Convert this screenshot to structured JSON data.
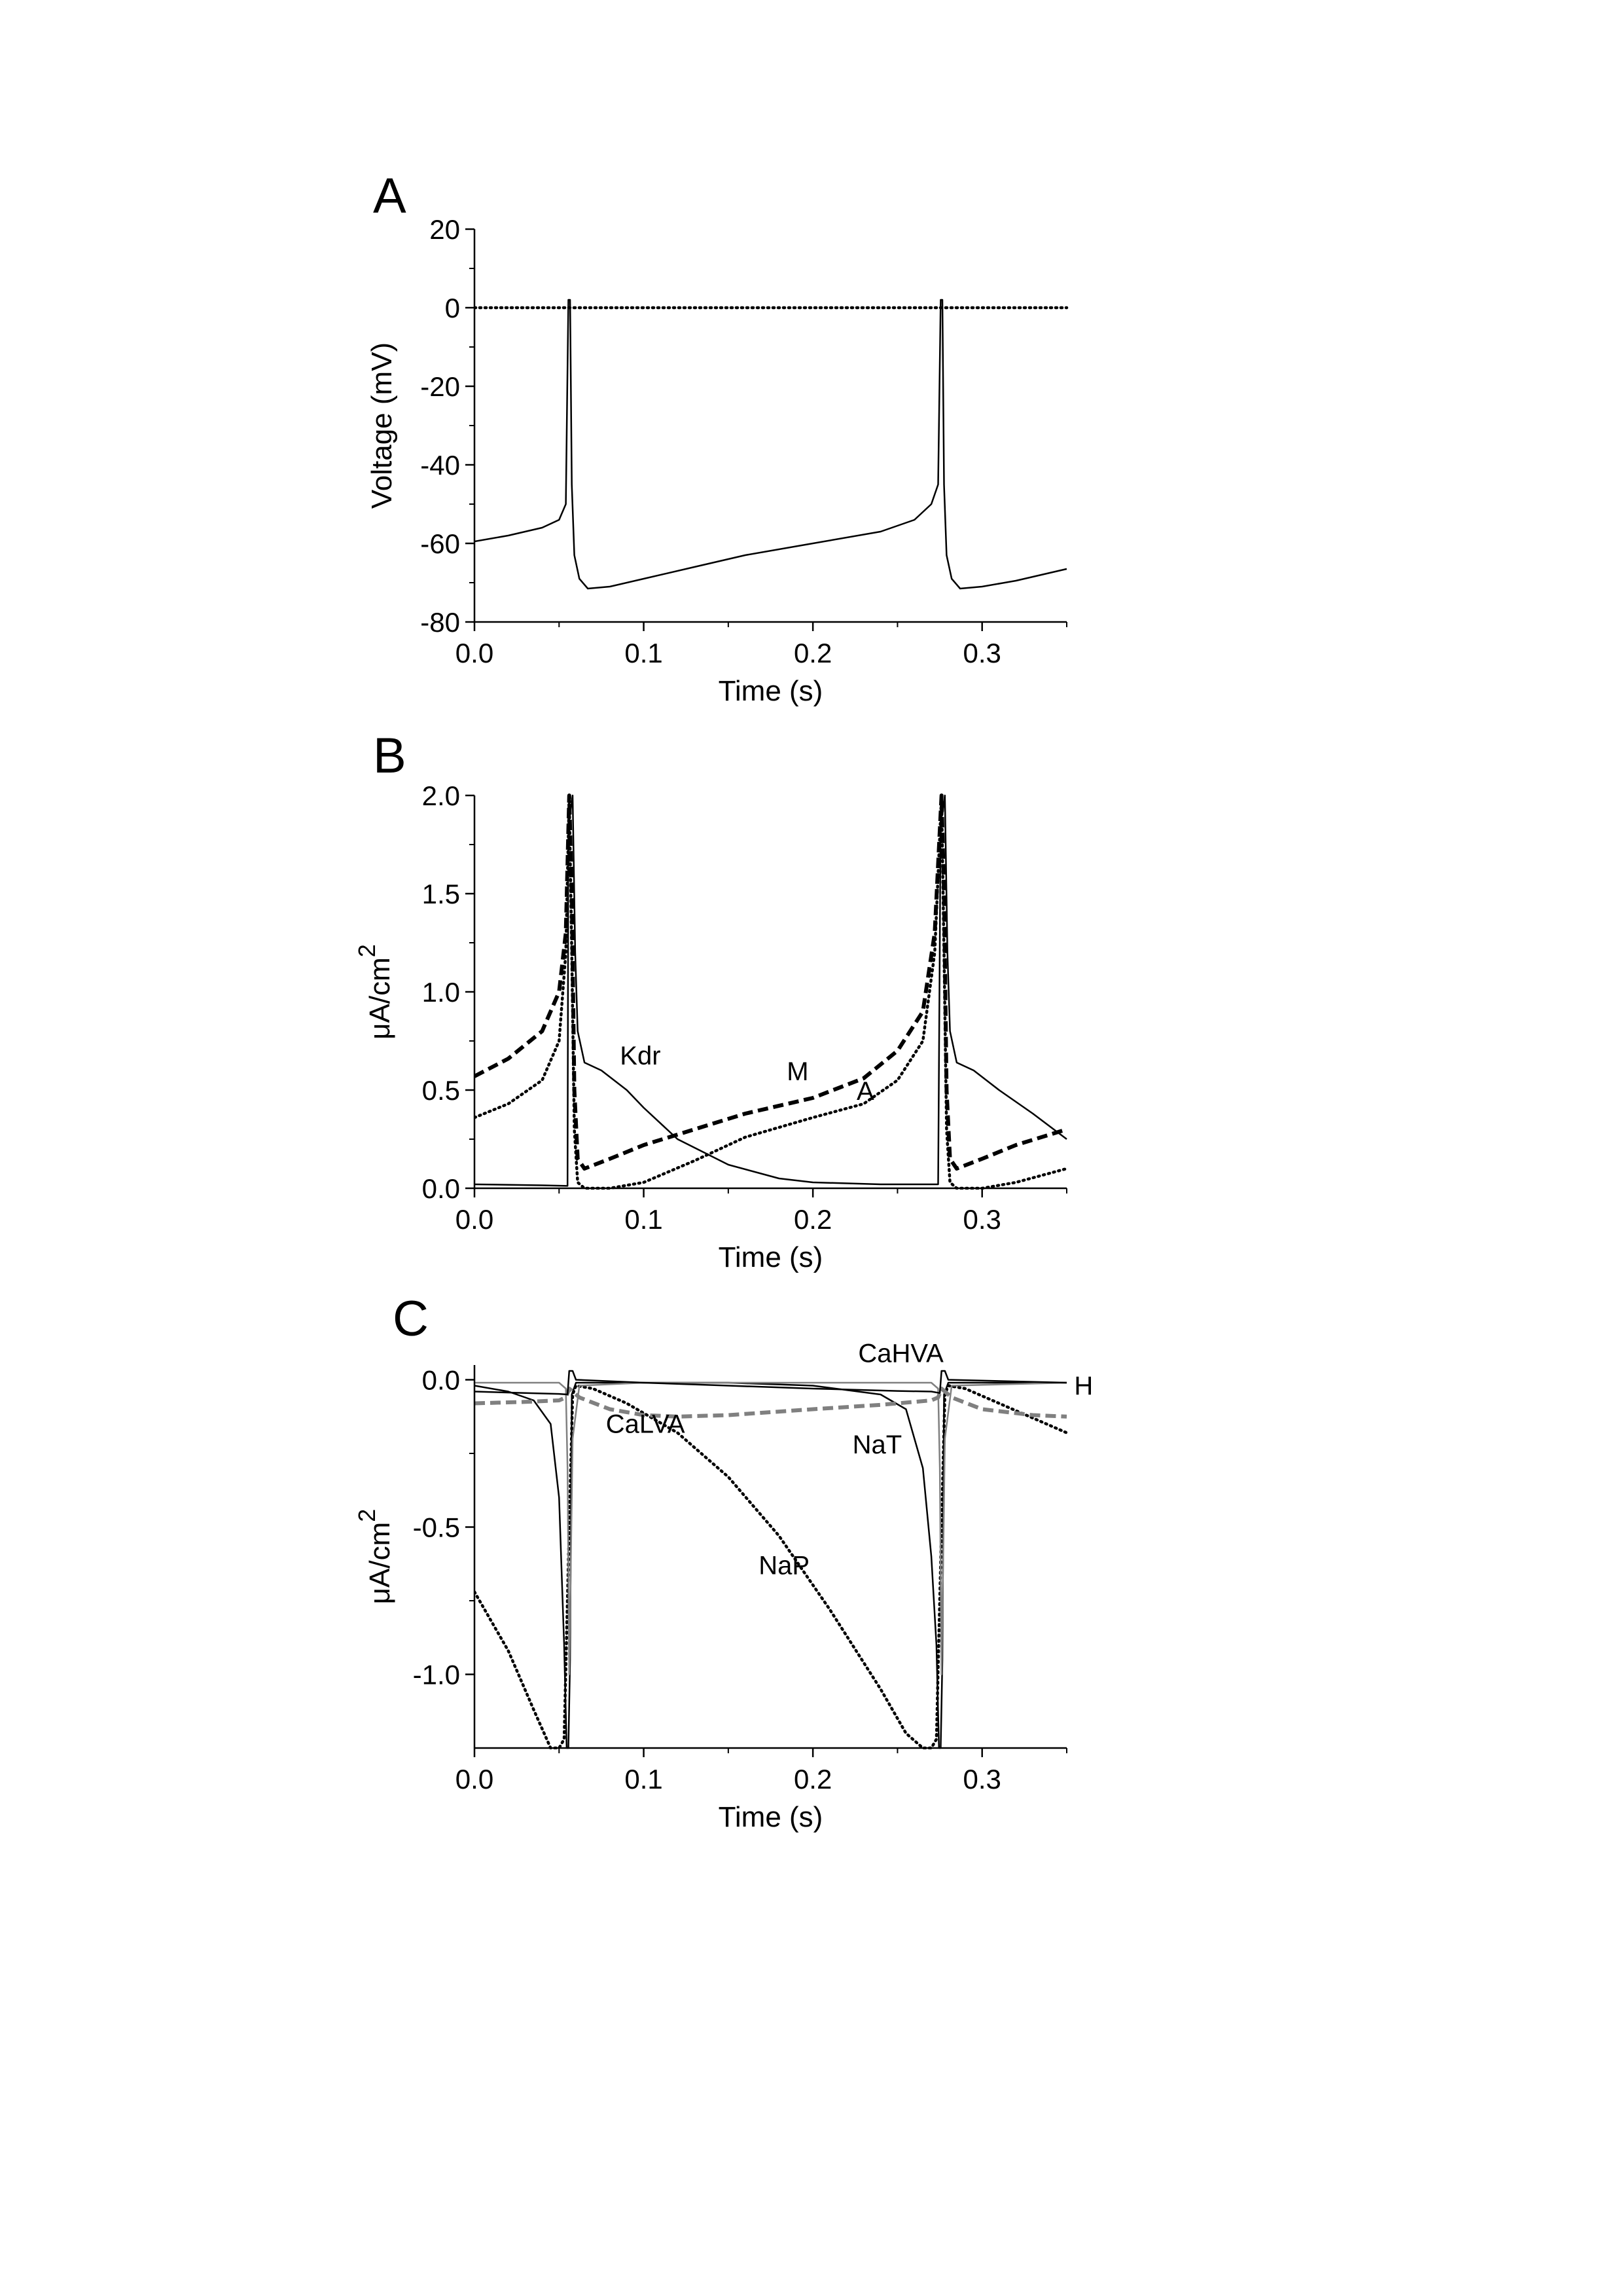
{
  "chart_data": [
    {
      "panel": "A",
      "type": "line",
      "title": "",
      "xlabel": "Time (s)",
      "ylabel": "Voltage (mV)",
      "xlim": [
        0,
        0.35
      ],
      "ylim": [
        -80,
        20
      ],
      "xticks": [
        0.0,
        0.1,
        0.2,
        0.3
      ],
      "xtick_labels": [
        "0.0",
        "0.1",
        "0.2",
        "0.3"
      ],
      "yticks": [
        20,
        0,
        -20,
        -40,
        -60,
        -80
      ],
      "ytick_labels": [
        "20",
        "0",
        "-20",
        "-40",
        "-60",
        "-80"
      ],
      "grid": false,
      "series": [
        {
          "style": "solid",
          "color": "#000000",
          "x": [
            0,
            0.02,
            0.04,
            0.05,
            0.054,
            0.0555,
            0.0565,
            0.0575,
            0.059,
            0.062,
            0.067,
            0.08,
            0.1,
            0.13,
            0.16,
            0.2,
            0.24,
            0.26,
            0.27,
            0.274,
            0.2755,
            0.2765,
            0.2775,
            0.279,
            0.282,
            0.287,
            0.3,
            0.32,
            0.35
          ],
          "y": [
            -59.5,
            -58,
            -56,
            -54,
            -50,
            2,
            2,
            -45,
            -63,
            -69,
            -71.5,
            -71,
            -69,
            -66,
            -63,
            -60,
            -57,
            -54,
            -50,
            -45,
            2,
            2,
            -45,
            -63,
            -69,
            -71.5,
            -71,
            -69.5,
            -66.5
          ]
        },
        {
          "style": "dotted",
          "color": "#000000",
          "x": [
            0,
            0.35
          ],
          "y": [
            0,
            0
          ]
        }
      ]
    },
    {
      "panel": "B",
      "type": "line",
      "title": "",
      "xlabel": "Time (s)",
      "ylabel": "μA/cm",
      "ylabel_superscript": "2",
      "xlim": [
        0,
        0.35
      ],
      "ylim": [
        0,
        2
      ],
      "xticks": [
        0.0,
        0.1,
        0.2,
        0.3
      ],
      "xtick_labels": [
        "0.0",
        "0.1",
        "0.2",
        "0.3"
      ],
      "yticks": [
        0,
        0.5,
        1.0,
        1.5,
        2.0
      ],
      "ytick_labels": [
        "0.0",
        "0.5",
        "1.0",
        "1.5",
        "2.0"
      ],
      "grid": false,
      "annotations": [
        {
          "text": "Kdr",
          "x": 0.098,
          "y": 0.63
        },
        {
          "text": "M",
          "x": 0.191,
          "y": 0.55
        },
        {
          "text": "A",
          "x": 0.231,
          "y": 0.45
        }
      ],
      "series": [
        {
          "name": "Kdr",
          "style": "solid",
          "color": "#000000",
          "x": [
            0,
            0.04,
            0.055,
            0.0555,
            0.0565,
            0.058,
            0.0595,
            0.061,
            0.065,
            0.075,
            0.09,
            0.1,
            0.12,
            0.15,
            0.18,
            0.2,
            0.24,
            0.274,
            0.2755,
            0.2765,
            0.278,
            0.2795,
            0.281,
            0.285,
            0.295,
            0.31,
            0.33,
            0.35
          ],
          "y": [
            0.02,
            0.015,
            0.012,
            1.9,
            1.9,
            2.0,
            1.2,
            0.8,
            0.64,
            0.6,
            0.5,
            0.41,
            0.25,
            0.12,
            0.05,
            0.03,
            0.02,
            0.02,
            1.9,
            1.9,
            2.0,
            1.2,
            0.8,
            0.64,
            0.6,
            0.5,
            0.38,
            0.25
          ]
        },
        {
          "name": "M",
          "style": "dashed",
          "color": "#000000",
          "x": [
            0,
            0.02,
            0.04,
            0.05,
            0.054,
            0.056,
            0.0575,
            0.059,
            0.061,
            0.065,
            0.08,
            0.1,
            0.13,
            0.16,
            0.2,
            0.23,
            0.25,
            0.265,
            0.272,
            0.276,
            0.2775,
            0.279,
            0.281,
            0.285,
            0.3,
            0.32,
            0.35
          ],
          "y": [
            0.57,
            0.66,
            0.8,
            1.0,
            1.3,
            2.0,
            1.5,
            0.5,
            0.15,
            0.1,
            0.15,
            0.22,
            0.3,
            0.38,
            0.46,
            0.56,
            0.7,
            0.9,
            1.3,
            2.0,
            1.5,
            0.5,
            0.15,
            0.1,
            0.15,
            0.22,
            0.3
          ]
        },
        {
          "name": "A",
          "style": "dotted",
          "color": "#000000",
          "x": [
            0,
            0.02,
            0.04,
            0.05,
            0.054,
            0.056,
            0.0575,
            0.059,
            0.061,
            0.065,
            0.08,
            0.1,
            0.13,
            0.16,
            0.2,
            0.23,
            0.25,
            0.265,
            0.272,
            0.276,
            0.2775,
            0.279,
            0.281,
            0.285,
            0.3,
            0.32,
            0.35
          ],
          "y": [
            0.36,
            0.43,
            0.55,
            0.75,
            1.2,
            2.0,
            1.2,
            0.3,
            0.03,
            0.0,
            0.0,
            0.03,
            0.14,
            0.26,
            0.36,
            0.43,
            0.55,
            0.75,
            1.2,
            2.0,
            1.2,
            0.3,
            0.03,
            0.0,
            0.0,
            0.03,
            0.1
          ]
        }
      ]
    },
    {
      "panel": "C",
      "type": "line",
      "title": "",
      "xlabel": "Time (s)",
      "ylabel": "μA/cm",
      "ylabel_superscript": "2",
      "xlim": [
        0,
        0.35
      ],
      "ylim": [
        -1.25,
        0.05
      ],
      "xticks": [
        0.0,
        0.1,
        0.2,
        0.3
      ],
      "xtick_labels": [
        "0.0",
        "0.1",
        "0.2",
        "0.3"
      ],
      "yticks": [
        0.0,
        -0.5,
        -1.0
      ],
      "ytick_labels": [
        "0.0",
        "-0.5",
        "-1.0"
      ],
      "grid": false,
      "annotations": [
        {
          "text": "CaHVA",
          "x": 0.252,
          "y": 0.06,
          "color": "#808080"
        },
        {
          "text": "H",
          "x": 0.36,
          "y": -0.05,
          "color": "#000000"
        },
        {
          "text": "CaLVA",
          "x": 0.101,
          "y": -0.18,
          "color": "#808080"
        },
        {
          "text": "NaT",
          "x": 0.238,
          "y": -0.25,
          "color": "#000000"
        },
        {
          "text": "NaP",
          "x": 0.183,
          "y": -0.66,
          "color": "#000000"
        }
      ],
      "series": [
        {
          "name": "NaT",
          "style": "solid",
          "color": "#000000",
          "x": [
            0,
            0.02,
            0.035,
            0.045,
            0.05,
            0.053,
            0.0545,
            0.0555,
            0.0565,
            0.0575,
            0.06,
            0.1,
            0.15,
            0.2,
            0.24,
            0.255,
            0.265,
            0.27,
            0.273,
            0.2745,
            0.2755,
            0.2765,
            0.2775,
            0.28,
            0.35
          ],
          "y": [
            -0.02,
            -0.04,
            -0.07,
            -0.15,
            -0.4,
            -0.9,
            -1.25,
            -1.25,
            -0.95,
            -0.05,
            -0.01,
            -0.01,
            -0.01,
            -0.02,
            -0.05,
            -0.1,
            -0.3,
            -0.6,
            -0.9,
            -1.25,
            -1.25,
            -0.95,
            -0.05,
            -0.01,
            -0.01
          ]
        },
        {
          "name": "NaP",
          "style": "dotted",
          "color": "#000000",
          "x": [
            0,
            0.02,
            0.035,
            0.045,
            0.05,
            0.053,
            0.056,
            0.058,
            0.06,
            0.07,
            0.09,
            0.12,
            0.15,
            0.18,
            0.21,
            0.24,
            0.255,
            0.265,
            0.27,
            0.273,
            0.276,
            0.278,
            0.28,
            0.29,
            0.31,
            0.35
          ],
          "y": [
            -0.72,
            -0.92,
            -1.12,
            -1.25,
            -1.25,
            -1.22,
            -0.5,
            -0.05,
            -0.02,
            -0.03,
            -0.08,
            -0.18,
            -0.33,
            -0.53,
            -0.78,
            -1.05,
            -1.2,
            -1.25,
            -1.25,
            -1.22,
            -0.5,
            -0.05,
            -0.02,
            -0.03,
            -0.08,
            -0.18
          ]
        },
        {
          "name": "CaLVA",
          "style": "dashed",
          "color": "#808080",
          "x": [
            0,
            0.03,
            0.05,
            0.054,
            0.056,
            0.058,
            0.062,
            0.08,
            0.1,
            0.12,
            0.15,
            0.2,
            0.24,
            0.27,
            0.274,
            0.276,
            0.278,
            0.282,
            0.3,
            0.33,
            0.35
          ],
          "y": [
            -0.08,
            -0.075,
            -0.07,
            -0.06,
            -0.03,
            -0.04,
            -0.06,
            -0.1,
            -0.12,
            -0.125,
            -0.12,
            -0.1,
            -0.085,
            -0.07,
            -0.06,
            -0.03,
            -0.04,
            -0.06,
            -0.1,
            -0.12,
            -0.125
          ]
        },
        {
          "name": "CaHVA",
          "style": "solid",
          "color": "#808080",
          "x": [
            0,
            0.05,
            0.054,
            0.055,
            0.056,
            0.058,
            0.062,
            0.1,
            0.2,
            0.27,
            0.274,
            0.275,
            0.276,
            0.278,
            0.282,
            0.35
          ],
          "y": [
            -0.01,
            -0.01,
            -0.03,
            -0.3,
            -1.0,
            -0.2,
            -0.02,
            -0.01,
            -0.01,
            -0.01,
            -0.03,
            -0.3,
            -1.0,
            -0.2,
            -0.02,
            -0.01
          ]
        },
        {
          "name": "H",
          "style": "solid",
          "color": "#000000",
          "x": [
            0,
            0.03,
            0.05,
            0.055,
            0.056,
            0.058,
            0.06,
            0.1,
            0.15,
            0.2,
            0.25,
            0.27,
            0.275,
            0.276,
            0.278,
            0.28,
            0.35
          ],
          "y": [
            -0.04,
            -0.045,
            -0.048,
            -0.05,
            0.03,
            0.03,
            0.0,
            -0.01,
            -0.02,
            -0.03,
            -0.038,
            -0.04,
            -0.045,
            0.03,
            0.03,
            0.0,
            -0.01
          ]
        }
      ]
    }
  ]
}
